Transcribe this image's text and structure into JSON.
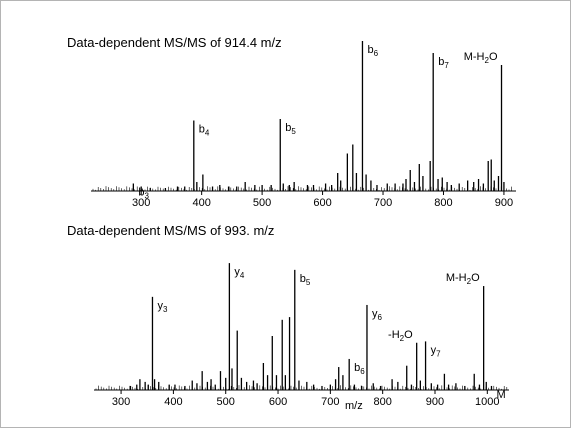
{
  "chart_data": [
    {
      "type": "bar",
      "title": "Data-dependent MS/MS of 914.4 m/z",
      "xlabel": "",
      "xlim": [
        255,
        915
      ],
      "ylim": [
        0,
        100
      ],
      "xticks": [
        "300",
        "400",
        "500",
        "600",
        "700",
        "800",
        "900"
      ],
      "peaks": [
        {
          "x": 287,
          "y": 5
        },
        {
          "x": 300,
          "y": 3
        },
        {
          "x": 315,
          "y": 2
        },
        {
          "x": 340,
          "y": 2
        },
        {
          "x": 360,
          "y": 3
        },
        {
          "x": 372,
          "y": 3
        },
        {
          "x": 387,
          "y": 47
        },
        {
          "x": 392,
          "y": 6
        },
        {
          "x": 402,
          "y": 11
        },
        {
          "x": 418,
          "y": 3
        },
        {
          "x": 430,
          "y": 4
        },
        {
          "x": 445,
          "y": 3
        },
        {
          "x": 458,
          "y": 3
        },
        {
          "x": 472,
          "y": 6
        },
        {
          "x": 488,
          "y": 4
        },
        {
          "x": 500,
          "y": 4
        },
        {
          "x": 515,
          "y": 4
        },
        {
          "x": 530,
          "y": 48
        },
        {
          "x": 535,
          "y": 5
        },
        {
          "x": 545,
          "y": 4
        },
        {
          "x": 553,
          "y": 6
        },
        {
          "x": 575,
          "y": 4
        },
        {
          "x": 585,
          "y": 4
        },
        {
          "x": 605,
          "y": 5
        },
        {
          "x": 615,
          "y": 4
        },
        {
          "x": 625,
          "y": 12
        },
        {
          "x": 630,
          "y": 7
        },
        {
          "x": 641,
          "y": 25
        },
        {
          "x": 650,
          "y": 31
        },
        {
          "x": 656,
          "y": 12
        },
        {
          "x": 666,
          "y": 100
        },
        {
          "x": 672,
          "y": 11
        },
        {
          "x": 680,
          "y": 7
        },
        {
          "x": 690,
          "y": 4
        },
        {
          "x": 707,
          "y": 5
        },
        {
          "x": 720,
          "y": 5
        },
        {
          "x": 733,
          "y": 5
        },
        {
          "x": 738,
          "y": 8
        },
        {
          "x": 745,
          "y": 14
        },
        {
          "x": 752,
          "y": 6
        },
        {
          "x": 760,
          "y": 18
        },
        {
          "x": 766,
          "y": 10
        },
        {
          "x": 778,
          "y": 20
        },
        {
          "x": 783,
          "y": 92
        },
        {
          "x": 791,
          "y": 8
        },
        {
          "x": 798,
          "y": 9
        },
        {
          "x": 806,
          "y": 6
        },
        {
          "x": 813,
          "y": 4
        },
        {
          "x": 826,
          "y": 5
        },
        {
          "x": 840,
          "y": 7
        },
        {
          "x": 850,
          "y": 6
        },
        {
          "x": 858,
          "y": 8
        },
        {
          "x": 866,
          "y": 5
        },
        {
          "x": 874,
          "y": 20
        },
        {
          "x": 879,
          "y": 21
        },
        {
          "x": 884,
          "y": 7
        },
        {
          "x": 891,
          "y": 10
        },
        {
          "x": 896,
          "y": 84
        },
        {
          "x": 900,
          "y": 6
        }
      ],
      "annotations": [
        {
          "x": 287,
          "y": 5,
          "label": "b",
          "sub": "3"
        },
        {
          "x": 387,
          "y": 47,
          "label": "b",
          "sub": "4"
        },
        {
          "x": 530,
          "y": 48,
          "label": "b",
          "sub": "5"
        },
        {
          "x": 666,
          "y": 100,
          "label": "b",
          "sub": "6"
        },
        {
          "x": 783,
          "y": 92,
          "label": "b",
          "sub": "7"
        },
        {
          "x": 896,
          "y": 84,
          "label": "M-H",
          "sub": "2",
          "tail": "O"
        }
      ]
    },
    {
      "type": "bar",
      "title": "Data-dependent MS/MS of 993. m/z",
      "xlabel": "m/z",
      "xlim": [
        275,
        1030
      ],
      "ylim": [
        0,
        100
      ],
      "xticks": [
        "300",
        "400",
        "500",
        "600",
        "700",
        "800",
        "900",
        "1000"
      ],
      "peaks": [
        {
          "x": 318,
          "y": 3
        },
        {
          "x": 330,
          "y": 4
        },
        {
          "x": 336,
          "y": 8
        },
        {
          "x": 346,
          "y": 6
        },
        {
          "x": 352,
          "y": 4
        },
        {
          "x": 360,
          "y": 69
        },
        {
          "x": 364,
          "y": 8
        },
        {
          "x": 372,
          "y": 6
        },
        {
          "x": 392,
          "y": 4
        },
        {
          "x": 403,
          "y": 4
        },
        {
          "x": 422,
          "y": 3
        },
        {
          "x": 436,
          "y": 7
        },
        {
          "x": 445,
          "y": 5
        },
        {
          "x": 455,
          "y": 14
        },
        {
          "x": 465,
          "y": 6
        },
        {
          "x": 472,
          "y": 8
        },
        {
          "x": 480,
          "y": 4
        },
        {
          "x": 490,
          "y": 14
        },
        {
          "x": 500,
          "y": 9
        },
        {
          "x": 507,
          "y": 94
        },
        {
          "x": 512,
          "y": 16
        },
        {
          "x": 522,
          "y": 44
        },
        {
          "x": 530,
          "y": 9
        },
        {
          "x": 540,
          "y": 6
        },
        {
          "x": 553,
          "y": 7
        },
        {
          "x": 560,
          "y": 5
        },
        {
          "x": 572,
          "y": 20
        },
        {
          "x": 580,
          "y": 11
        },
        {
          "x": 589,
          "y": 40
        },
        {
          "x": 597,
          "y": 11
        },
        {
          "x": 608,
          "y": 52
        },
        {
          "x": 614,
          "y": 11
        },
        {
          "x": 622,
          "y": 54
        },
        {
          "x": 632,
          "y": 89
        },
        {
          "x": 640,
          "y": 7
        },
        {
          "x": 655,
          "y": 6
        },
        {
          "x": 668,
          "y": 4
        },
        {
          "x": 684,
          "y": 3
        },
        {
          "x": 700,
          "y": 4
        },
        {
          "x": 710,
          "y": 8
        },
        {
          "x": 716,
          "y": 17
        },
        {
          "x": 724,
          "y": 11
        },
        {
          "x": 736,
          "y": 23
        },
        {
          "x": 746,
          "y": 4
        },
        {
          "x": 760,
          "y": 3
        },
        {
          "x": 770,
          "y": 63
        },
        {
          "x": 782,
          "y": 5
        },
        {
          "x": 796,
          "y": 3
        },
        {
          "x": 818,
          "y": 8
        },
        {
          "x": 829,
          "y": 6
        },
        {
          "x": 846,
          "y": 18
        },
        {
          "x": 855,
          "y": 4
        },
        {
          "x": 865,
          "y": 35
        },
        {
          "x": 872,
          "y": 7
        },
        {
          "x": 882,
          "y": 36
        },
        {
          "x": 893,
          "y": 5
        },
        {
          "x": 905,
          "y": 4
        },
        {
          "x": 918,
          "y": 12
        },
        {
          "x": 926,
          "y": 4
        },
        {
          "x": 940,
          "y": 5
        },
        {
          "x": 957,
          "y": 3
        },
        {
          "x": 975,
          "y": 12
        },
        {
          "x": 985,
          "y": 4
        },
        {
          "x": 993,
          "y": 77
        },
        {
          "x": 998,
          "y": 6
        },
        {
          "x": 1008,
          "y": 3
        }
      ],
      "annotations": [
        {
          "x": 360,
          "y": 69,
          "label": "y",
          "sub": "3"
        },
        {
          "x": 507,
          "y": 94,
          "label": "y",
          "sub": "4"
        },
        {
          "x": 632,
          "y": 89,
          "label": "b",
          "sub": "5"
        },
        {
          "x": 736,
          "y": 23,
          "label": "b",
          "sub": "6"
        },
        {
          "x": 770,
          "y": 63,
          "label": "y",
          "sub": "6"
        },
        {
          "x": 865,
          "y": 35,
          "label": "-H",
          "sub": "2",
          "tail": "O"
        },
        {
          "x": 882,
          "y": 36,
          "label": "y",
          "sub": "7"
        },
        {
          "x": 993,
          "y": 77,
          "label": "M-H",
          "sub": "2",
          "tail": "O"
        },
        {
          "x": 1008,
          "y": 3,
          "label": "M",
          "sub": ""
        }
      ]
    }
  ]
}
